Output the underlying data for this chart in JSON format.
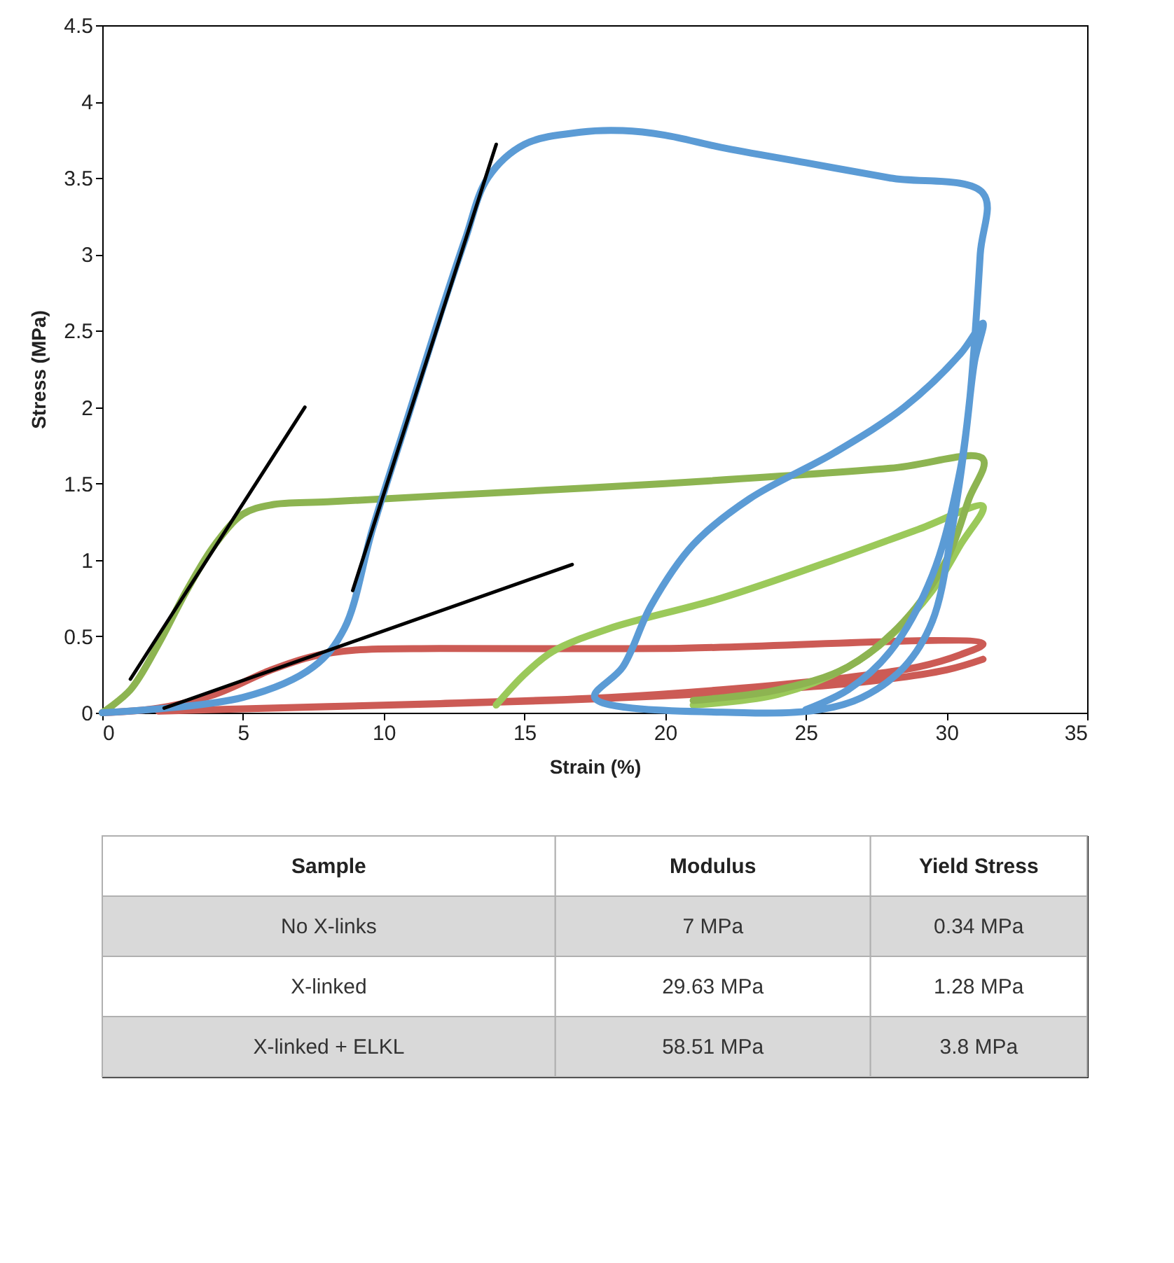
{
  "chart_data": [
    {
      "type": "line",
      "xlabel": "Strain (%)",
      "ylabel": "Stress (MPa)",
      "xlim": [
        0,
        35
      ],
      "ylim": [
        0,
        4.5
      ],
      "xticks": [
        0,
        5,
        10,
        15,
        20,
        25,
        30,
        35
      ],
      "yticks": [
        0,
        0.5,
        1,
        1.5,
        2,
        2.5,
        3,
        3.5,
        4,
        4.5
      ],
      "grid": false,
      "line_style": "solid",
      "marker": "none",
      "series": [
        {
          "color": "#cc5b55",
          "x": [
            0,
            2,
            4,
            6,
            7.5,
            9,
            12,
            20,
            31.3,
            30.5,
            29,
            26,
            22,
            18,
            12,
            6,
            2,
            8,
            16,
            22,
            27,
            30,
            31.3
          ],
          "values": [
            0,
            0.03,
            0.12,
            0.28,
            0.37,
            0.41,
            0.42,
            0.42,
            0.45,
            0.38,
            0.3,
            0.22,
            0.15,
            0.1,
            0.06,
            0.03,
            0.01,
            0.04,
            0.08,
            0.13,
            0.2,
            0.28,
            0.35
          ]
        },
        {
          "color": "#9bc95a",
          "x": [
            14,
            15,
            16,
            18,
            22,
            26,
            29,
            31.3,
            30.5,
            29.5,
            28,
            26.5,
            24,
            21
          ],
          "values": [
            0.05,
            0.25,
            0.4,
            0.55,
            0.75,
            1.0,
            1.2,
            1.35,
            1.1,
            0.8,
            0.5,
            0.3,
            0.12,
            0.05
          ]
        },
        {
          "color": "#8db451",
          "x": [
            0,
            1,
            2,
            3,
            4,
            5,
            6,
            8,
            12,
            20,
            28,
            31.3,
            30.8,
            30,
            28.5,
            26.5,
            24,
            21
          ],
          "values": [
            0,
            0.15,
            0.45,
            0.8,
            1.1,
            1.3,
            1.36,
            1.38,
            1.42,
            1.5,
            1.6,
            1.66,
            1.4,
            1.0,
            0.6,
            0.3,
            0.15,
            0.08
          ]
        },
        {
          "color": "#5b9bd5",
          "x": [
            0,
            5,
            7.5,
            8.6,
            9.6,
            10.8,
            12.0,
            12.9,
            13.7,
            15,
            17,
            18.5,
            20,
            22,
            25,
            28,
            31.3,
            31.2,
            30.8,
            30.2,
            29.5,
            28.5,
            27,
            25.5,
            22.8,
            17.5,
            18.5,
            19.5,
            21,
            23,
            26,
            28.5,
            30.5,
            31.3,
            31,
            30.5,
            29.5,
            28,
            26.5,
            25
          ],
          "values": [
            0,
            0.1,
            0.3,
            0.55,
            1.2,
            1.9,
            2.6,
            3.1,
            3.5,
            3.72,
            3.8,
            3.81,
            3.78,
            3.7,
            3.6,
            3.5,
            3.4,
            3.0,
            2.0,
            1.2,
            0.6,
            0.3,
            0.1,
            0.02,
            0,
            0.1,
            0.3,
            0.7,
            1.1,
            1.4,
            1.7,
            2.0,
            2.35,
            2.55,
            2.3,
            1.6,
            0.9,
            0.4,
            0.15,
            0.02
          ]
        },
        {
          "color": "#000000",
          "x": [
            1,
            7.2
          ],
          "values": [
            0.22,
            2.0
          ]
        },
        {
          "color": "#000000",
          "x": [
            8.9,
            14
          ],
          "values": [
            0.8,
            3.72
          ]
        },
        {
          "color": "#000000",
          "x": [
            2.2,
            16.7
          ],
          "values": [
            0.03,
            0.97
          ]
        }
      ]
    },
    {
      "type": "other",
      "ylabel": "Sample",
      "categories": [
        "Modulus",
        "Yield Stress"
      ],
      "y_categories": [
        "No X-links",
        "X-linked",
        "X-linked + ELKL"
      ],
      "cell_labels": [
        [
          "7 MPa",
          "0.34 MPa"
        ],
        [
          "29.63 MPa",
          "1.28 MPa"
        ],
        [
          "58.51 MPa",
          "3.8 MPa"
        ]
      ]
    }
  ]
}
